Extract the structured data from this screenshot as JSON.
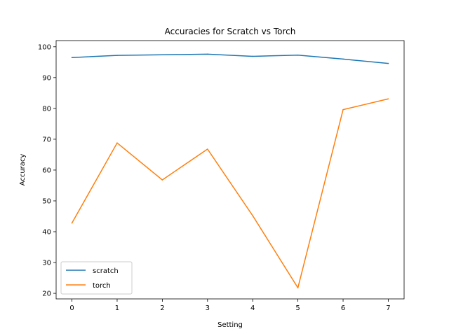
{
  "chart_data": {
    "type": "line",
    "title": "Accuracies for Scratch vs Torch",
    "xlabel": "Setting",
    "ylabel": "Accuracy",
    "x": [
      0,
      1,
      2,
      3,
      4,
      5,
      6,
      7
    ],
    "xlim": [
      -0.35,
      7.35
    ],
    "ylim": [
      18.2,
      102.0
    ],
    "xticks": [
      0,
      1,
      2,
      3,
      4,
      5,
      6,
      7
    ],
    "yticks": [
      20,
      30,
      40,
      50,
      60,
      70,
      80,
      90,
      100
    ],
    "grid": false,
    "legend_position": "lower-left",
    "series": [
      {
        "name": "scratch",
        "color": "#1f77b4",
        "values": [
          96.5,
          97.2,
          97.4,
          97.6,
          96.9,
          97.3,
          96.0,
          94.6
        ]
      },
      {
        "name": "torch",
        "color": "#ff7f0e",
        "values": [
          42.8,
          68.8,
          56.8,
          66.8,
          45.2,
          21.8,
          79.6,
          83.1
        ]
      }
    ]
  }
}
